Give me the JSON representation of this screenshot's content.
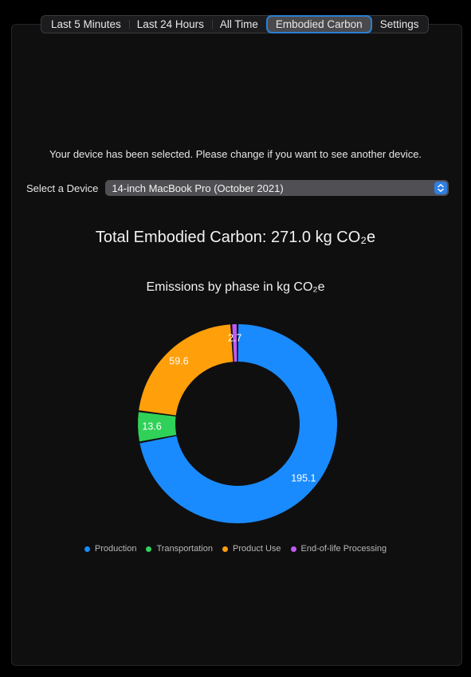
{
  "tabs": [
    {
      "label": "Last 5 Minutes",
      "active": false
    },
    {
      "label": "Last 24 Hours",
      "active": false
    },
    {
      "label": "All Time",
      "active": false
    },
    {
      "label": "Embodied Carbon",
      "active": true
    },
    {
      "label": "Settings",
      "active": false
    }
  ],
  "device_note": "Your device has been selected. Please change if you want to see another device.",
  "device_select": {
    "label": "Select a Device",
    "value": "14-inch MacBook Pro (October 2021)",
    "icon": "up-down-chevron-icon"
  },
  "total_title": "Total Embodied Carbon: 271.0 kg CO₂e",
  "chart_data": {
    "type": "pie",
    "variant": "donut",
    "title": "Emissions by phase in kg CO₂e",
    "categories": [
      "Production",
      "Transportation",
      "Product Use",
      "End-of-life Processing"
    ],
    "values": [
      195.1,
      13.6,
      59.6,
      2.7
    ],
    "data_labels": [
      "195.1",
      "13.6",
      "59.6",
      "2.7"
    ],
    "colors": [
      "#1a8bff",
      "#30d158",
      "#ff9f0a",
      "#bf5af2"
    ],
    "legend": "bottom"
  }
}
